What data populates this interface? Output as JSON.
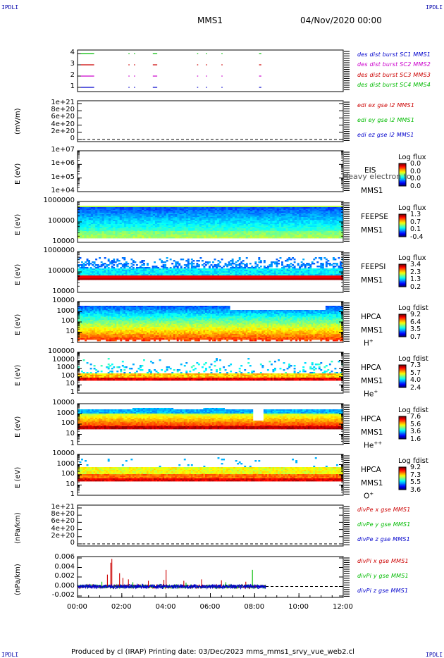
{
  "corners": {
    "tl": "IPDLI",
    "tr": "IPDLI",
    "bl": "IPDLI",
    "br": "IPDLI"
  },
  "header": {
    "mission": "MMS1",
    "datetime": "04/Nov/2020 00:00"
  },
  "footer": {
    "text": "Produced by cl (IRAP)   Printing date: 03/Dec/2023   mms_mms1_srvy_vue_web2.cl"
  },
  "chart_data": [
    {
      "type": "line",
      "panel": "burst",
      "ticks": [
        "4",
        "3",
        "2",
        "1"
      ],
      "legend": [
        {
          "text": "des dist burst SC1 MMS1",
          "color": "#0000cc"
        },
        {
          "text": "des dist burst SC2 MMS2",
          "color": "#cc00cc"
        },
        {
          "text": "des dist burst SC3 MMS3",
          "color": "#cc0000"
        },
        {
          "text": "des dist burst SC4 MMS4",
          "color": "#00bb00"
        }
      ],
      "colors": [
        "#00bb00",
        "#cc0000",
        "#cc00cc",
        "#0000cc"
      ],
      "intervals": [
        [
          0.15,
          0.75
        ],
        [
          2.3,
          2.35
        ],
        [
          2.55,
          2.6
        ],
        [
          3.4,
          3.6
        ],
        [
          5.4,
          5.45
        ],
        [
          5.8,
          5.85
        ],
        [
          6.5,
          6.55
        ],
        [
          8.2,
          8.3
        ]
      ]
    },
    {
      "type": "line",
      "panel": "edi",
      "ylabel": "(mV/m)",
      "ticks": [
        "1e+21",
        "8e+20",
        "6e+20",
        "4e+20",
        "2e+20",
        "0"
      ],
      "legend": [
        {
          "text": "edi ex gse l2 MMS1",
          "color": "#cc0000"
        },
        {
          "text": "edi ey gse l2 MMS1",
          "color": "#00bb00"
        },
        {
          "text": "edi ez gse l2 MMS1",
          "color": "#0000cc"
        }
      ]
    },
    {
      "type": "heatmap",
      "panel": "EIS",
      "ylabel": "E (eV)",
      "ticks": [
        "1e+07",
        "1e+06",
        "1e+05",
        "1e+04"
      ],
      "right_labels": [
        "EIS",
        "MMS1"
      ],
      "overlay": "Heavy electron to",
      "colorbar": {
        "title": "Log flux",
        "values": [
          "0.0",
          "0.0",
          "0.0",
          "0.0"
        ]
      }
    },
    {
      "type": "heatmap",
      "panel": "FEEPSE",
      "ylabel": "E (eV)",
      "ticks": [
        "1000000",
        "100000",
        "10000"
      ],
      "right_labels": [
        "FEEPSE",
        "MMS1"
      ],
      "colorbar": {
        "title": "Log flux",
        "values": [
          "1.3",
          "0.7",
          "0.1",
          "-0.4"
        ]
      }
    },
    {
      "type": "heatmap",
      "panel": "FEEPSI",
      "ylabel": "E (eV)",
      "ticks": [
        "1000000",
        "100000",
        "10000"
      ],
      "right_labels": [
        "FEEPSI",
        "MMS1"
      ],
      "colorbar": {
        "title": "Log flux",
        "values": [
          "3.4",
          "2.3",
          "1.3",
          "0.2"
        ]
      }
    },
    {
      "type": "heatmap",
      "panel": "HPCA H+",
      "ylabel": "E (eV)",
      "ticks": [
        "10000",
        "1000",
        "100",
        "10",
        "1"
      ],
      "right_labels": [
        "HPCA",
        "MMS1"
      ],
      "species": "H",
      "species_sup": "+",
      "colorbar": {
        "title": "Log fdist",
        "values": [
          "9.2",
          "6.4",
          "3.5",
          "0.7"
        ]
      }
    },
    {
      "type": "heatmap",
      "panel": "HPCA He+",
      "ylabel": "E (eV)",
      "ticks": [
        "100000",
        "10000",
        "1000",
        "100",
        "10",
        "1"
      ],
      "right_labels": [
        "HPCA",
        "MMS1"
      ],
      "species": "He",
      "species_sup": "+",
      "colorbar": {
        "title": "Log fdist",
        "values": [
          "7.3",
          "5.7",
          "4.0",
          "2.4"
        ]
      }
    },
    {
      "type": "heatmap",
      "panel": "HPCA He++",
      "ylabel": "E (eV)",
      "ticks": [
        "10000",
        "1000",
        "100",
        "10",
        "1"
      ],
      "right_labels": [
        "HPCA",
        "MMS1"
      ],
      "species": "He",
      "species_sup": "++",
      "colorbar": {
        "title": "Log fdist",
        "values": [
          "7.6",
          "5.6",
          "3.6",
          "1.6"
        ]
      }
    },
    {
      "type": "heatmap",
      "panel": "HPCA O+",
      "ylabel": "E (eV)",
      "ticks": [
        "10000",
        "1000",
        "100",
        "10",
        "1"
      ],
      "right_labels": [
        "HPCA",
        "MMS1"
      ],
      "species": "O",
      "species_sup": "+",
      "colorbar": {
        "title": "Log fdist",
        "values": [
          "9.2",
          "7.3",
          "5.5",
          "3.6"
        ]
      }
    },
    {
      "type": "line",
      "panel": "divPe",
      "ylabel": "(nPa/km)",
      "ticks": [
        "1e+21",
        "8e+20",
        "6e+20",
        "4e+20",
        "2e+20",
        "0"
      ],
      "legend": [
        {
          "text": "divPe x gse MMS1",
          "color": "#cc0000"
        },
        {
          "text": "divPe y gse MMS1",
          "color": "#00bb00"
        },
        {
          "text": "divPe z gse MMS1",
          "color": "#0000cc"
        }
      ]
    },
    {
      "type": "line",
      "panel": "divPi",
      "ylabel": "(nPa/km)",
      "ticks": [
        "0.006",
        "0.004",
        "0.002",
        "0.000",
        "-0.002"
      ],
      "ylim": [
        -0.002,
        0.006
      ],
      "legend": [
        {
          "text": "divPi x gse MMS1",
          "color": "#cc0000"
        },
        {
          "text": "divPi y gse MMS1",
          "color": "#00bb00"
        },
        {
          "text": "divPi z gse MMS1",
          "color": "#0000cc"
        }
      ],
      "data_end_hour": 8.5,
      "spikes_x": [
        [
          1.35,
          0.0025
        ],
        [
          1.5,
          0.005
        ],
        [
          1.55,
          0.0058
        ],
        [
          1.9,
          0.0028
        ],
        [
          2.05,
          0.0018
        ],
        [
          2.3,
          0.0015
        ],
        [
          3.2,
          0.0012
        ],
        [
          3.9,
          0.0014
        ],
        [
          4.0,
          0.0035
        ],
        [
          4.8,
          0.0012
        ],
        [
          5.6,
          0.0015
        ],
        [
          6.5,
          0.0013
        ],
        [
          7.6,
          0.001
        ]
      ],
      "spikes_y": [
        [
          1.1,
          0.001
        ],
        [
          2.5,
          0.0009
        ],
        [
          4.9,
          0.0008
        ],
        [
          6.7,
          0.0009
        ],
        [
          7.9,
          0.0035
        ]
      ]
    },
    {
      "type": "axis",
      "panel": "time",
      "xlim": [
        0,
        12
      ],
      "tick_labels": [
        "00:00",
        "02:00",
        "04:00",
        "06:00",
        "08:00",
        "10:00",
        "12:00"
      ]
    }
  ]
}
